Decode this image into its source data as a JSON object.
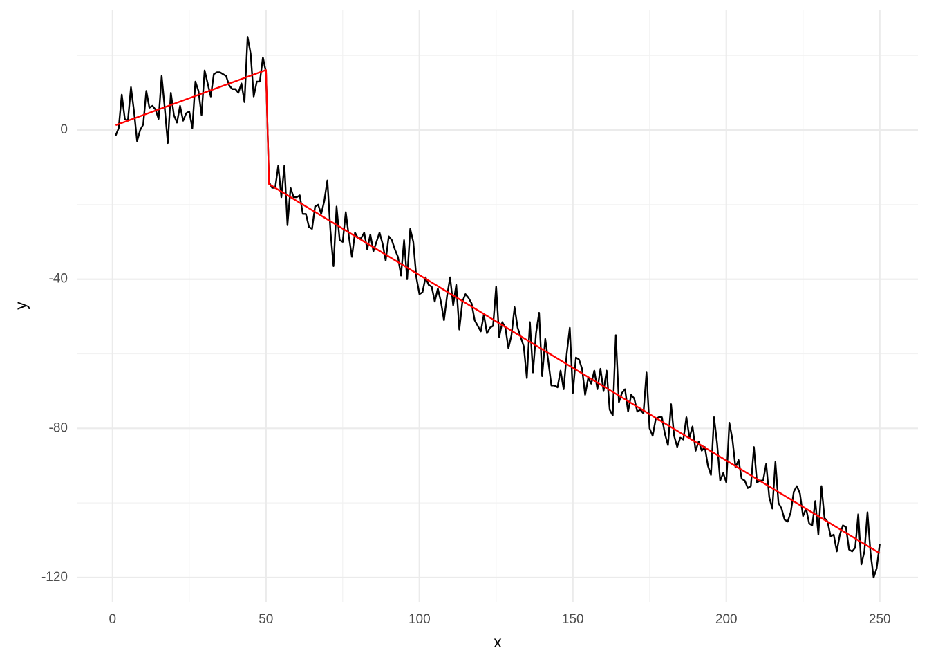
{
  "chart_data": {
    "type": "line",
    "x_label": "x",
    "y_label": "y",
    "xlim": [
      -11.45,
      262.45
    ],
    "ylim": [
      -126.5,
      32.1
    ],
    "xticks": [
      0,
      50,
      100,
      150,
      200,
      250
    ],
    "yticks": [
      0,
      -40,
      -80,
      -120
    ],
    "xminor": [
      25,
      75,
      125,
      175,
      225
    ],
    "yminor": [
      20,
      -20,
      -60,
      -100
    ],
    "grid": true,
    "series": [
      {
        "color": "#000000",
        "x": [
          1,
          2,
          3,
          4,
          5,
          6,
          7,
          8,
          9,
          10,
          11,
          12,
          13,
          14,
          15,
          16,
          17,
          18,
          19,
          20,
          21,
          22,
          23,
          24,
          25,
          26,
          27,
          28,
          29,
          30,
          31,
          32,
          33,
          34,
          35,
          36,
          37,
          38,
          39,
          40,
          41,
          42,
          43,
          44,
          45,
          46,
          47,
          48,
          49,
          50,
          51,
          52,
          53,
          54,
          55,
          56,
          57,
          58,
          59,
          60,
          61,
          62,
          63,
          64,
          65,
          66,
          67,
          68,
          69,
          70,
          71,
          72,
          73,
          74,
          75,
          76,
          77,
          78,
          79,
          80,
          81,
          82,
          83,
          84,
          85,
          86,
          87,
          88,
          89,
          90,
          91,
          92,
          93,
          94,
          95,
          96,
          97,
          98,
          99,
          100,
          101,
          102,
          103,
          104,
          105,
          106,
          107,
          108,
          109,
          110,
          111,
          112,
          113,
          114,
          115,
          116,
          117,
          118,
          119,
          120,
          121,
          122,
          123,
          124,
          125,
          126,
          127,
          128,
          129,
          130,
          131,
          132,
          133,
          134,
          135,
          136,
          137,
          138,
          139,
          140,
          141,
          142,
          143,
          144,
          145,
          146,
          147,
          148,
          149,
          150,
          151,
          152,
          153,
          154,
          155,
          156,
          157,
          158,
          159,
          160,
          161,
          162,
          163,
          164,
          165,
          166,
          167,
          168,
          169,
          170,
          171,
          172,
          173,
          174,
          175,
          176,
          177,
          178,
          179,
          180,
          181,
          182,
          183,
          184,
          185,
          186,
          187,
          188,
          189,
          190,
          191,
          192,
          193,
          194,
          195,
          196,
          197,
          198,
          199,
          200,
          201,
          202,
          203,
          204,
          205,
          206,
          207,
          208,
          209,
          210,
          211,
          212,
          213,
          214,
          215,
          216,
          217,
          218,
          219,
          220,
          221,
          222,
          223,
          224,
          225,
          226,
          227,
          228,
          229,
          230,
          231,
          232,
          233,
          234,
          235,
          236,
          237,
          238,
          239,
          240,
          241,
          242,
          243,
          244,
          245,
          246,
          247,
          248,
          249,
          250
        ],
        "values": [
          -1.5,
          0.5,
          9.5,
          3,
          2.5,
          11.5,
          5,
          -3,
          0,
          1.5,
          10.5,
          6,
          6.5,
          5.5,
          3,
          14.5,
          6,
          -3.5,
          10,
          4,
          2,
          6.5,
          2.5,
          4.5,
          5,
          0.5,
          13,
          10.5,
          4,
          16,
          12.5,
          9,
          15,
          15.5,
          15.5,
          15,
          14.5,
          12,
          11,
          11,
          10,
          12.5,
          7.5,
          25,
          20.5,
          9,
          13,
          13,
          19.5,
          15.5,
          -14,
          -15.5,
          -15.5,
          -9.5,
          -18,
          -9.5,
          -25.5,
          -15.5,
          -18,
          -18,
          -17.5,
          -22.5,
          -22.5,
          -26,
          -26.5,
          -20.5,
          -20,
          -22.5,
          -19,
          -13.5,
          -27,
          -36.5,
          -20.5,
          -29.5,
          -30,
          -22,
          -28.5,
          -34,
          -27.5,
          -29,
          -29,
          -27.5,
          -32,
          -28,
          -32.5,
          -30,
          -27.5,
          -30.5,
          -35,
          -28.5,
          -29.5,
          -32,
          -34,
          -39,
          -29.5,
          -40,
          -26.5,
          -30,
          -39.5,
          -44,
          -43.5,
          -39.5,
          -41.5,
          -42,
          -46,
          -42.5,
          -46,
          -51,
          -44.5,
          -39.5,
          -47,
          -41.5,
          -53.5,
          -46,
          -44,
          -45,
          -46.5,
          -51,
          -52.5,
          -54,
          -49.5,
          -54.5,
          -53,
          -52.5,
          -42,
          -55.5,
          -51.5,
          -53,
          -58.5,
          -55,
          -47.5,
          -53,
          -55.5,
          -58,
          -66.5,
          -51.5,
          -65,
          -54.5,
          -49,
          -66,
          -56,
          -62,
          -68.5,
          -68.5,
          -69,
          -64.5,
          -69.5,
          -60,
          -53,
          -70.5,
          -61,
          -61.5,
          -64,
          -71,
          -66.5,
          -68,
          -64.5,
          -69.5,
          -64,
          -70,
          -64.5,
          -75,
          -76.5,
          -55,
          -73,
          -70.5,
          -69.5,
          -75.5,
          -71,
          -72,
          -75.5,
          -75,
          -76,
          -65,
          -80,
          -82,
          -77.5,
          -77,
          -77,
          -81.5,
          -84.5,
          -73.5,
          -82,
          -85,
          -82.5,
          -83,
          -77,
          -82.5,
          -79.5,
          -86,
          -83.5,
          -86,
          -85,
          -90,
          -92.5,
          -77,
          -84,
          -94,
          -92,
          -94.5,
          -78.5,
          -83,
          -90.5,
          -88.5,
          -93.5,
          -94,
          -96,
          -95.5,
          -85,
          -94.5,
          -94,
          -94,
          -89.5,
          -98.5,
          -101.5,
          -89,
          -100,
          -101.5,
          -104.5,
          -105,
          -102.5,
          -97,
          -95.5,
          -97.5,
          -103.5,
          -101.5,
          -105.5,
          -106,
          -99.5,
          -108.5,
          -95.5,
          -104,
          -105,
          -109,
          -108.5,
          -113,
          -108.5,
          -106,
          -106.5,
          -112.5,
          -113,
          -112,
          -103,
          -116.5,
          -113,
          -102.5,
          -113.5,
          -120,
          -117.5,
          -111
        ]
      },
      {
        "color": "#ff0000",
        "x": [
          1,
          50,
          51,
          250
        ],
        "values": [
          1.3,
          16.1,
          -14.5,
          -113.5
        ]
      }
    ]
  }
}
